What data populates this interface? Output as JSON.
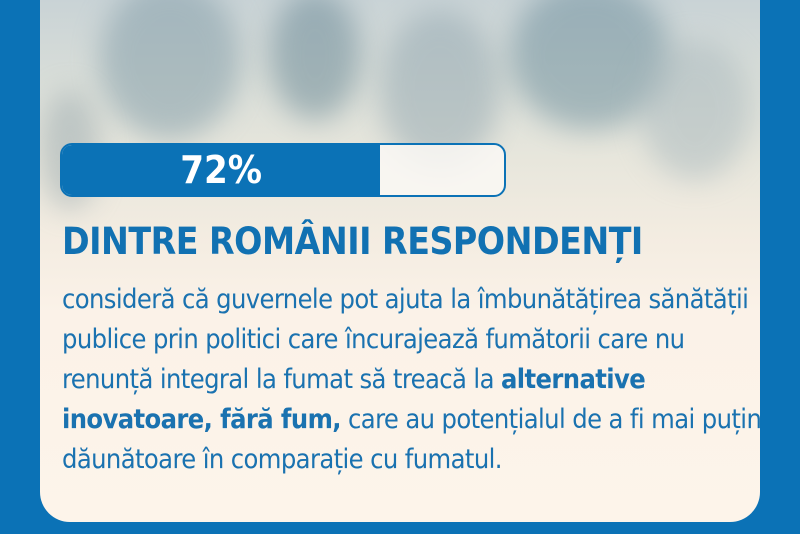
{
  "colors": {
    "brand_blue": "#0b72b6",
    "text_blue": "#1a72b0",
    "panel_bg": "#fdf4ea"
  },
  "stat": {
    "value_label": "72%",
    "percent": 72
  },
  "headline": "DINTRE ROMÂNII RESPONDENȚI",
  "body": {
    "part1": "consideră că guvernele pot ajuta la îmbunătățirea sănătății publice prin politici care încurajează fumătorii care nu renunță integral la fumat să treacă la ",
    "emphasis": "alternative inovatoare, fără fum,",
    "part2": " care au potențialul de a fi mai puțin dăunătoare în comparație cu fumatul."
  }
}
